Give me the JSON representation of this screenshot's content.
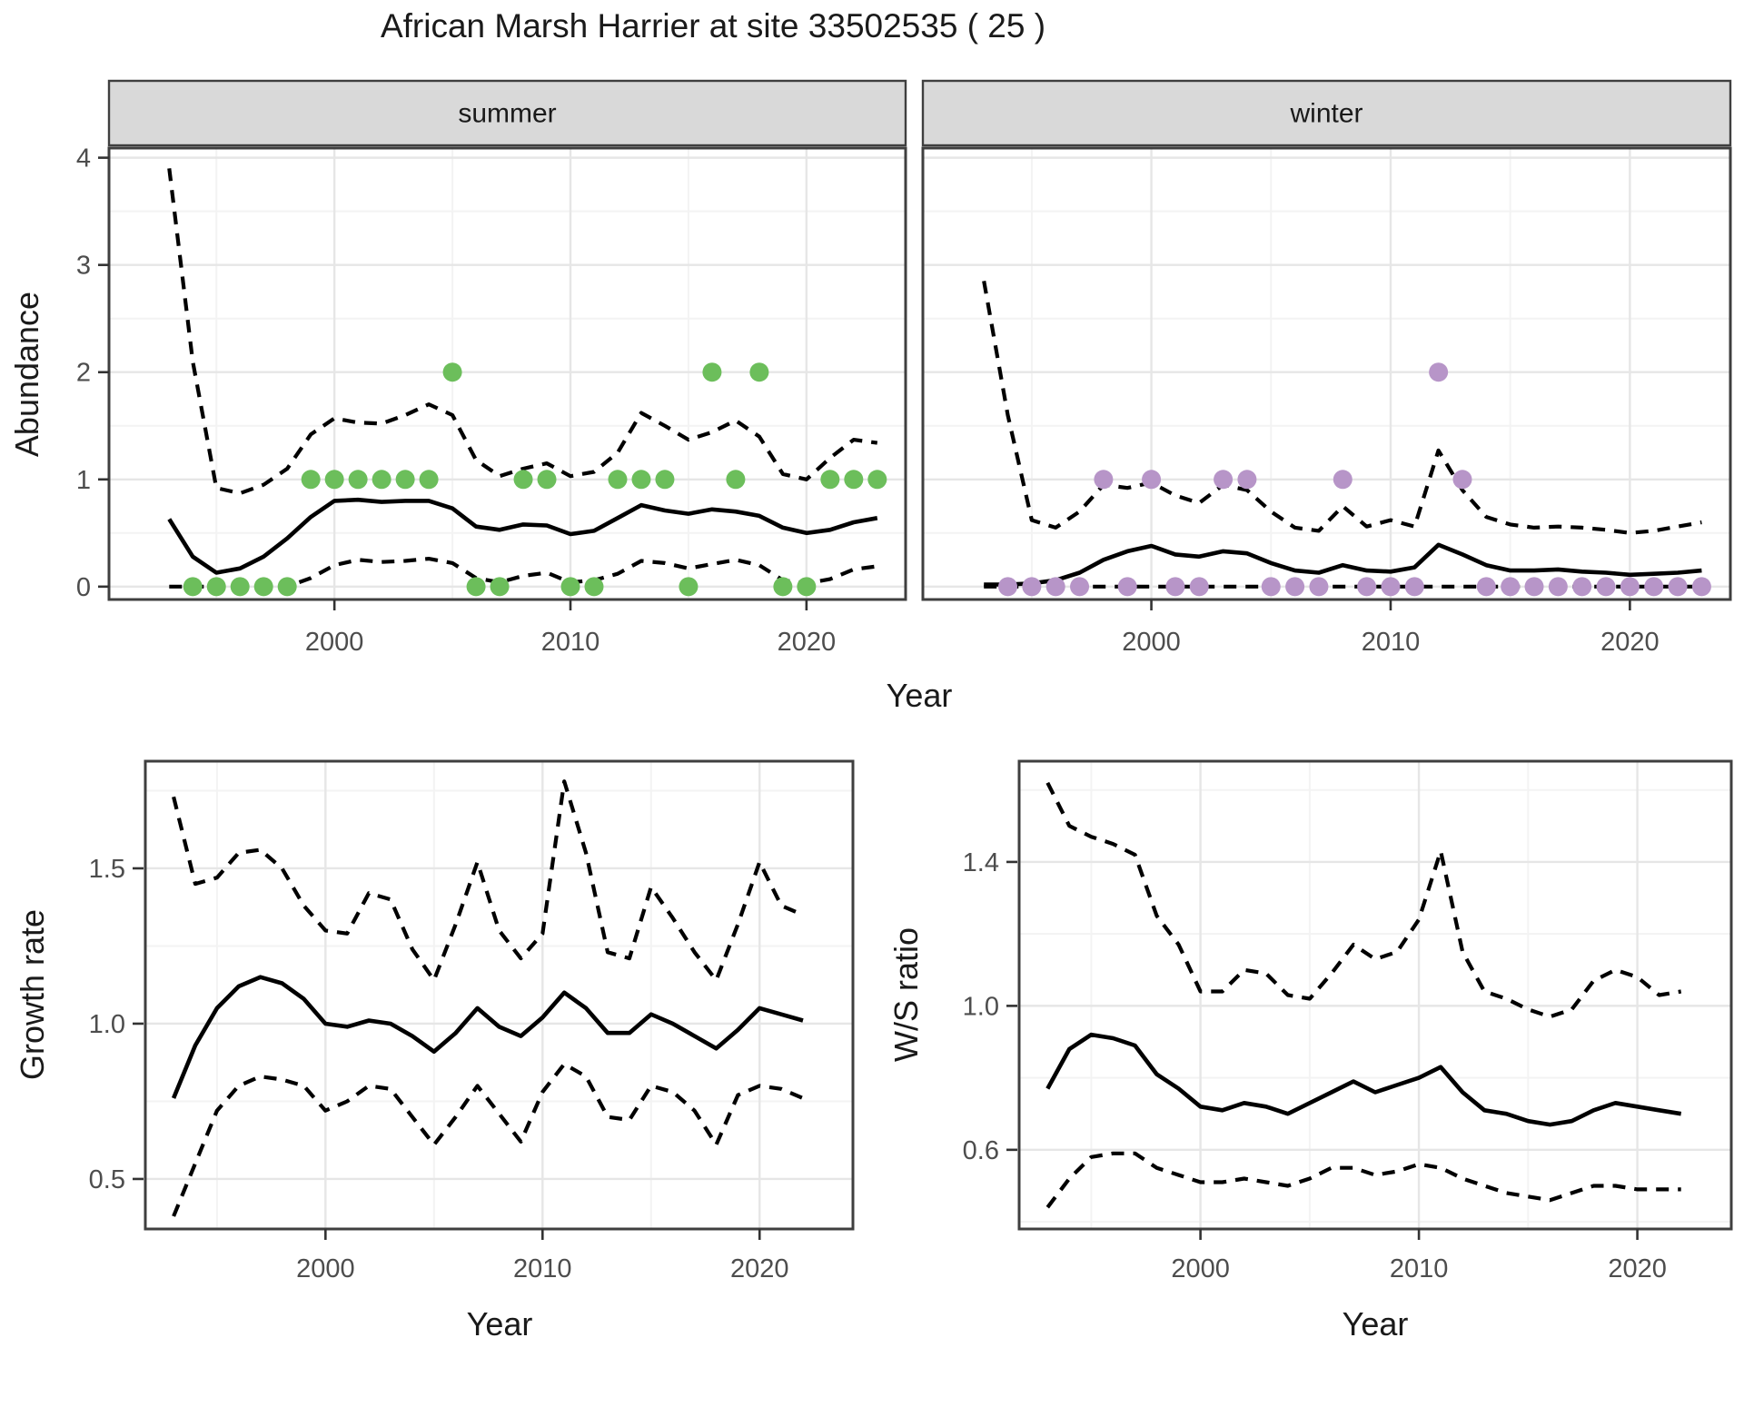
{
  "title": "African Marsh Harrier at site 33502535 ( 25 )",
  "colors": {
    "summer_points": "#6cbe5b",
    "winter_points": "#b795c8",
    "line": "#000000",
    "grid_major": "#e6e6e6",
    "grid_minor": "#f3f3f3",
    "panel_border": "#3f3f3f",
    "strip_fill": "#d9d9d9",
    "tick_text": "#4d4d4d",
    "axis_text": "#1a1a1a"
  },
  "chart_data": [
    {
      "id": "abundance",
      "type": "line",
      "xlabel": "Year",
      "ylabel": "Abundance",
      "xlim": [
        1990.45,
        2024.2
      ],
      "ylim": [
        -0.12,
        4.09
      ],
      "x_ticks": [
        2000,
        2010,
        2020
      ],
      "x_tick_labels": [
        "2000",
        "2010",
        "2020"
      ],
      "x_minor": [
        1995,
        2005,
        2015
      ],
      "y_ticks": [
        0,
        1,
        2,
        3,
        4
      ],
      "y_tick_labels": [
        "0",
        "1",
        "2",
        "3",
        "4"
      ],
      "y_minor": [
        0.5,
        1.5,
        2.5,
        3.5
      ],
      "years": [
        1993,
        1994,
        1995,
        1996,
        1997,
        1998,
        1999,
        2000,
        2001,
        2002,
        2003,
        2004,
        2005,
        2006,
        2007,
        2008,
        2009,
        2010,
        2011,
        2012,
        2013,
        2014,
        2015,
        2016,
        2017,
        2018,
        2019,
        2020,
        2021,
        2022,
        2023
      ],
      "facets": [
        {
          "label": "summer",
          "point_color_key": "summer_points",
          "mean": [
            0.63,
            0.28,
            0.13,
            0.17,
            0.28,
            0.45,
            0.65,
            0.8,
            0.81,
            0.79,
            0.8,
            0.8,
            0.73,
            0.56,
            0.53,
            0.58,
            0.57,
            0.49,
            0.52,
            0.64,
            0.76,
            0.71,
            0.68,
            0.72,
            0.7,
            0.66,
            0.55,
            0.5,
            0.53,
            0.6,
            0.64
          ],
          "upper": [
            3.9,
            2.1,
            0.92,
            0.87,
            0.95,
            1.1,
            1.42,
            1.57,
            1.53,
            1.52,
            1.6,
            1.7,
            1.6,
            1.18,
            1.03,
            1.1,
            1.15,
            1.03,
            1.07,
            1.25,
            1.62,
            1.5,
            1.37,
            1.44,
            1.55,
            1.4,
            1.05,
            1.0,
            1.2,
            1.37,
            1.34
          ],
          "lower": [
            0.0,
            0.0,
            0.0,
            0.0,
            0.0,
            0.0,
            0.08,
            0.2,
            0.25,
            0.23,
            0.24,
            0.26,
            0.22,
            0.08,
            0.04,
            0.1,
            0.13,
            0.04,
            0.06,
            0.12,
            0.24,
            0.22,
            0.17,
            0.21,
            0.25,
            0.2,
            0.06,
            0.03,
            0.07,
            0.16,
            0.19
          ],
          "obs_years": [
            1994,
            1995,
            1996,
            1997,
            1998,
            1999,
            2000,
            2001,
            2002,
            2003,
            2004,
            2005,
            2006,
            2007,
            2008,
            2009,
            2010,
            2011,
            2012,
            2013,
            2014,
            2015,
            2016,
            2017,
            2018,
            2019,
            2020,
            2021,
            2022,
            2023
          ],
          "obs_values": [
            0,
            0,
            0,
            0,
            0,
            1,
            1,
            1,
            1,
            1,
            1,
            2,
            0,
            0,
            1,
            1,
            0,
            0,
            1,
            1,
            1,
            0,
            2,
            1,
            2,
            0,
            0,
            1,
            1,
            1
          ]
        },
        {
          "label": "winter",
          "point_color_key": "winter_points",
          "mean": [
            0.02,
            0.02,
            0.03,
            0.06,
            0.13,
            0.25,
            0.33,
            0.38,
            0.3,
            0.28,
            0.33,
            0.31,
            0.22,
            0.15,
            0.13,
            0.2,
            0.15,
            0.14,
            0.18,
            0.39,
            0.3,
            0.2,
            0.15,
            0.15,
            0.16,
            0.14,
            0.13,
            0.11,
            0.12,
            0.13,
            0.15
          ],
          "upper": [
            2.85,
            1.6,
            0.62,
            0.55,
            0.7,
            0.95,
            0.92,
            0.97,
            0.85,
            0.78,
            0.95,
            0.9,
            0.7,
            0.55,
            0.52,
            0.75,
            0.56,
            0.62,
            0.56,
            1.27,
            0.9,
            0.65,
            0.58,
            0.55,
            0.56,
            0.55,
            0.53,
            0.5,
            0.52,
            0.56,
            0.6
          ],
          "lower": [
            0.0,
            0.0,
            0.0,
            0.0,
            0.0,
            0.0,
            0.0,
            0.0,
            0.0,
            0.0,
            0.0,
            0.0,
            0.0,
            0.0,
            0.0,
            0.0,
            0.0,
            0.0,
            0.0,
            0.0,
            0.0,
            0.0,
            0.0,
            0.0,
            0.0,
            0.0,
            0.0,
            0.0,
            0.0,
            0.0,
            0.0
          ],
          "obs_years": [
            1994,
            1995,
            1996,
            1997,
            1998,
            1999,
            2000,
            2001,
            2002,
            2003,
            2004,
            2005,
            2006,
            2007,
            2008,
            2009,
            2010,
            2011,
            2012,
            2013,
            2014,
            2015,
            2016,
            2017,
            2018,
            2019,
            2020,
            2021,
            2022,
            2023
          ],
          "obs_values": [
            0,
            0,
            0,
            0,
            1,
            0,
            1,
            0,
            0,
            1,
            1,
            0,
            0,
            0,
            1,
            0,
            0,
            0,
            2,
            1,
            0,
            0,
            0,
            0,
            0,
            0,
            0,
            0,
            0,
            0
          ]
        }
      ]
    },
    {
      "id": "growth-rate",
      "type": "line",
      "xlabel": "Year",
      "ylabel": "Growth rate",
      "xlim": [
        1991.7,
        2024.3
      ],
      "ylim": [
        0.339,
        1.845
      ],
      "x_ticks": [
        2000,
        2010,
        2020
      ],
      "x_tick_labels": [
        "2000",
        "2010",
        "2020"
      ],
      "x_minor": [
        1995,
        2005,
        2015
      ],
      "y_ticks": [
        0.5,
        1.0,
        1.5
      ],
      "y_tick_labels": [
        "0.5",
        "1.0",
        "1.5"
      ],
      "y_minor": [
        0.75,
        1.25,
        1.75
      ],
      "years": [
        1993,
        1994,
        1995,
        1996,
        1997,
        1998,
        1999,
        2000,
        2001,
        2002,
        2003,
        2004,
        2005,
        2006,
        2007,
        2008,
        2009,
        2010,
        2011,
        2012,
        2013,
        2014,
        2015,
        2016,
        2017,
        2018,
        2019,
        2020,
        2021,
        2022
      ],
      "mean": [
        0.76,
        0.93,
        1.05,
        1.12,
        1.15,
        1.13,
        1.08,
        1.0,
        0.99,
        1.01,
        1.0,
        0.96,
        0.91,
        0.97,
        1.05,
        0.99,
        0.96,
        1.02,
        1.1,
        1.05,
        0.97,
        0.97,
        1.03,
        1.0,
        0.96,
        0.92,
        0.98,
        1.05,
        1.03,
        1.01
      ],
      "upper": [
        1.73,
        1.45,
        1.47,
        1.55,
        1.56,
        1.5,
        1.38,
        1.3,
        1.29,
        1.42,
        1.4,
        1.24,
        1.14,
        1.32,
        1.52,
        1.3,
        1.21,
        1.29,
        1.78,
        1.55,
        1.23,
        1.21,
        1.44,
        1.34,
        1.23,
        1.14,
        1.32,
        1.52,
        1.38,
        1.35
      ],
      "lower": [
        0.38,
        0.55,
        0.72,
        0.8,
        0.83,
        0.82,
        0.8,
        0.72,
        0.75,
        0.8,
        0.79,
        0.7,
        0.61,
        0.7,
        0.8,
        0.71,
        0.62,
        0.78,
        0.87,
        0.83,
        0.7,
        0.69,
        0.8,
        0.78,
        0.72,
        0.61,
        0.77,
        0.8,
        0.79,
        0.76
      ]
    },
    {
      "id": "ws-ratio",
      "type": "line",
      "xlabel": "Year",
      "ylabel": "W/S ratio",
      "xlim": [
        1991.7,
        2024.3
      ],
      "ylim": [
        0.38,
        1.68
      ],
      "x_ticks": [
        2000,
        2010,
        2020
      ],
      "x_tick_labels": [
        "2000",
        "2010",
        "2020"
      ],
      "x_minor": [
        1995,
        2005,
        2015
      ],
      "y_ticks": [
        0.6,
        1.0,
        1.4
      ],
      "y_tick_labels": [
        "0.6",
        "1.0",
        "1.4"
      ],
      "y_minor": [
        0.4,
        0.8,
        1.2,
        1.6
      ],
      "years": [
        1993,
        1994,
        1995,
        1996,
        1997,
        1998,
        1999,
        2000,
        2001,
        2002,
        2003,
        2004,
        2005,
        2006,
        2007,
        2008,
        2009,
        2010,
        2011,
        2012,
        2013,
        2014,
        2015,
        2016,
        2017,
        2018,
        2019,
        2020,
        2021,
        2022
      ],
      "mean": [
        0.77,
        0.88,
        0.92,
        0.91,
        0.89,
        0.81,
        0.77,
        0.72,
        0.71,
        0.73,
        0.72,
        0.7,
        0.73,
        0.76,
        0.79,
        0.76,
        0.78,
        0.8,
        0.83,
        0.76,
        0.71,
        0.7,
        0.68,
        0.67,
        0.68,
        0.71,
        0.73,
        0.72,
        0.71,
        0.7
      ],
      "upper": [
        1.62,
        1.5,
        1.47,
        1.45,
        1.42,
        1.25,
        1.17,
        1.04,
        1.04,
        1.1,
        1.09,
        1.03,
        1.02,
        1.09,
        1.17,
        1.13,
        1.15,
        1.24,
        1.43,
        1.15,
        1.04,
        1.02,
        0.99,
        0.97,
        0.99,
        1.07,
        1.1,
        1.08,
        1.03,
        1.04
      ],
      "lower": [
        0.44,
        0.52,
        0.58,
        0.59,
        0.59,
        0.55,
        0.53,
        0.51,
        0.51,
        0.52,
        0.51,
        0.5,
        0.52,
        0.55,
        0.55,
        0.53,
        0.54,
        0.56,
        0.55,
        0.52,
        0.5,
        0.48,
        0.47,
        0.46,
        0.48,
        0.5,
        0.5,
        0.49,
        0.49,
        0.49
      ]
    }
  ]
}
